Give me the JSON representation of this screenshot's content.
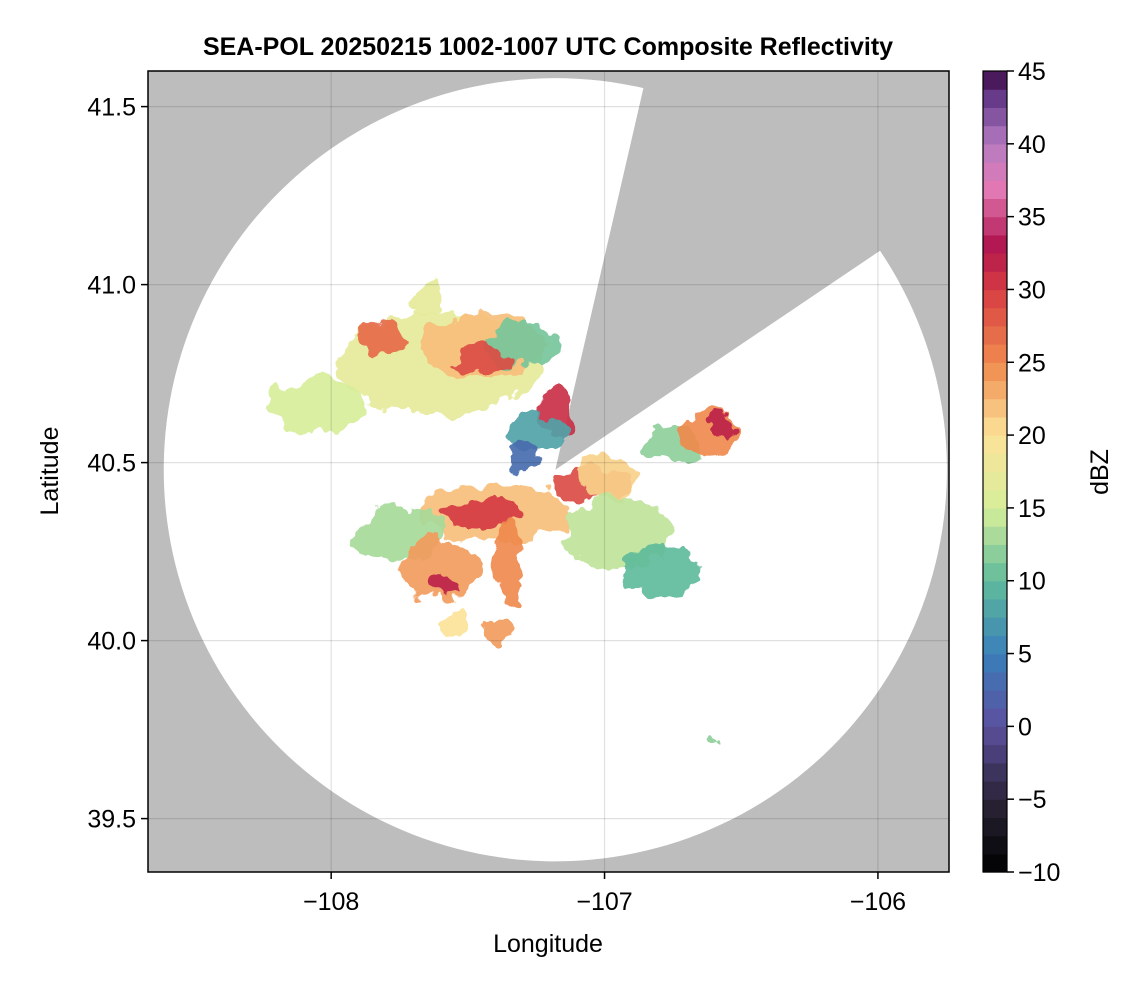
{
  "chart_data": {
    "type": "heatmap",
    "title": "SEA-POL 20250215 1002-1007 UTC Composite Reflectivity",
    "xlabel": "Longitude",
    "ylabel": "Latitude",
    "xlim": [
      -108.67,
      -105.74
    ],
    "ylim": [
      39.35,
      41.6
    ],
    "x_ticks": [
      -108,
      -107,
      -106
    ],
    "x_tick_labels": [
      "−108",
      "−107",
      "−106"
    ],
    "y_ticks": [
      39.5,
      40.0,
      40.5,
      41.0,
      41.5
    ],
    "y_tick_labels": [
      "39.5",
      "40.0",
      "40.5",
      "41.0",
      "41.5"
    ],
    "grid": true,
    "background_color": "#bdbdbd",
    "coverage_color": "#ffffff",
    "radar": {
      "center": [
        -107.18,
        40.48
      ],
      "radius_lat_deg": 1.1,
      "blocked_sectors_deg": [
        [
          13,
          56
        ]
      ]
    },
    "colorbar": {
      "label": "dBZ",
      "min": -10,
      "max": 45,
      "ticks": [
        -10,
        -5,
        0,
        5,
        10,
        15,
        20,
        25,
        30,
        35,
        40,
        45
      ],
      "tick_labels": [
        "−10",
        "−5",
        "0",
        "5",
        "10",
        "15",
        "20",
        "25",
        "30",
        "35",
        "40",
        "45"
      ],
      "levels": 44,
      "colormap": "Spectral-reversed + plasma top",
      "stops": [
        [
          -10,
          "#000000"
        ],
        [
          -5,
          "#2b2438"
        ],
        [
          0,
          "#5c4f9e"
        ],
        [
          5,
          "#3a7fba"
        ],
        [
          10,
          "#5fbb9b"
        ],
        [
          15,
          "#d7ee9a"
        ],
        [
          20,
          "#fbe399"
        ],
        [
          25,
          "#f08a4e"
        ],
        [
          30,
          "#d63c42"
        ],
        [
          33,
          "#b0154e"
        ],
        [
          37,
          "#e47bb6"
        ],
        [
          40,
          "#b47bc0"
        ],
        [
          43,
          "#6a3e8e"
        ],
        [
          45,
          "#3c0a47"
        ]
      ]
    },
    "echo_regions": [
      {
        "lon": -107.6,
        "lat": 40.78,
        "rx": 0.38,
        "ry": 0.14,
        "dbz": 17
      },
      {
        "lon": -107.45,
        "lat": 40.83,
        "rx": 0.22,
        "ry": 0.09,
        "dbz": 22
      },
      {
        "lon": -107.3,
        "lat": 40.83,
        "rx": 0.14,
        "ry": 0.06,
        "dbz": 11
      },
      {
        "lon": -107.45,
        "lat": 40.8,
        "rx": 0.1,
        "ry": 0.05,
        "dbz": 29
      },
      {
        "lon": -107.82,
        "lat": 40.85,
        "rx": 0.08,
        "ry": 0.05,
        "dbz": 27
      },
      {
        "lon": -108.05,
        "lat": 40.66,
        "rx": 0.18,
        "ry": 0.08,
        "dbz": 15
      },
      {
        "lon": -107.18,
        "lat": 40.64,
        "rx": 0.06,
        "ry": 0.06,
        "dbz": 31
      },
      {
        "lon": -107.25,
        "lat": 40.58,
        "rx": 0.1,
        "ry": 0.06,
        "dbz": 8
      },
      {
        "lon": -107.4,
        "lat": 40.36,
        "rx": 0.28,
        "ry": 0.08,
        "dbz": 22
      },
      {
        "lon": -107.45,
        "lat": 40.36,
        "rx": 0.16,
        "ry": 0.04,
        "dbz": 30
      },
      {
        "lon": -107.75,
        "lat": 40.3,
        "rx": 0.16,
        "ry": 0.08,
        "dbz": 13
      },
      {
        "lon": -107.6,
        "lat": 40.2,
        "rx": 0.14,
        "ry": 0.09,
        "dbz": 24
      },
      {
        "lon": -107.58,
        "lat": 40.15,
        "rx": 0.05,
        "ry": 0.03,
        "dbz": 32
      },
      {
        "lon": -107.35,
        "lat": 40.22,
        "rx": 0.05,
        "ry": 0.12,
        "dbz": 25
      },
      {
        "lon": -107.38,
        "lat": 40.03,
        "rx": 0.07,
        "ry": 0.03,
        "dbz": 24
      },
      {
        "lon": -107.55,
        "lat": 40.05,
        "rx": 0.05,
        "ry": 0.04,
        "dbz": 20
      },
      {
        "lon": -107.05,
        "lat": 40.44,
        "rx": 0.14,
        "ry": 0.05,
        "dbz": 29
      },
      {
        "lon": -107.0,
        "lat": 40.46,
        "rx": 0.1,
        "ry": 0.08,
        "dbz": 21
      },
      {
        "lon": -106.95,
        "lat": 40.3,
        "rx": 0.2,
        "ry": 0.1,
        "dbz": 14
      },
      {
        "lon": -106.8,
        "lat": 40.2,
        "rx": 0.14,
        "ry": 0.07,
        "dbz": 10
      },
      {
        "lon": -106.75,
        "lat": 40.55,
        "rx": 0.1,
        "ry": 0.05,
        "dbz": 12
      },
      {
        "lon": -106.62,
        "lat": 40.58,
        "rx": 0.1,
        "ry": 0.06,
        "dbz": 25
      },
      {
        "lon": -106.58,
        "lat": 40.6,
        "rx": 0.04,
        "ry": 0.03,
        "dbz": 32
      },
      {
        "lon": -107.3,
        "lat": 40.52,
        "rx": 0.06,
        "ry": 0.04,
        "dbz": 3
      },
      {
        "lon": -107.65,
        "lat": 40.95,
        "rx": 0.06,
        "ry": 0.04,
        "dbz": 17
      },
      {
        "lon": -106.6,
        "lat": 39.72,
        "rx": 0.01,
        "ry": 0.01,
        "dbz": 12
      }
    ]
  }
}
